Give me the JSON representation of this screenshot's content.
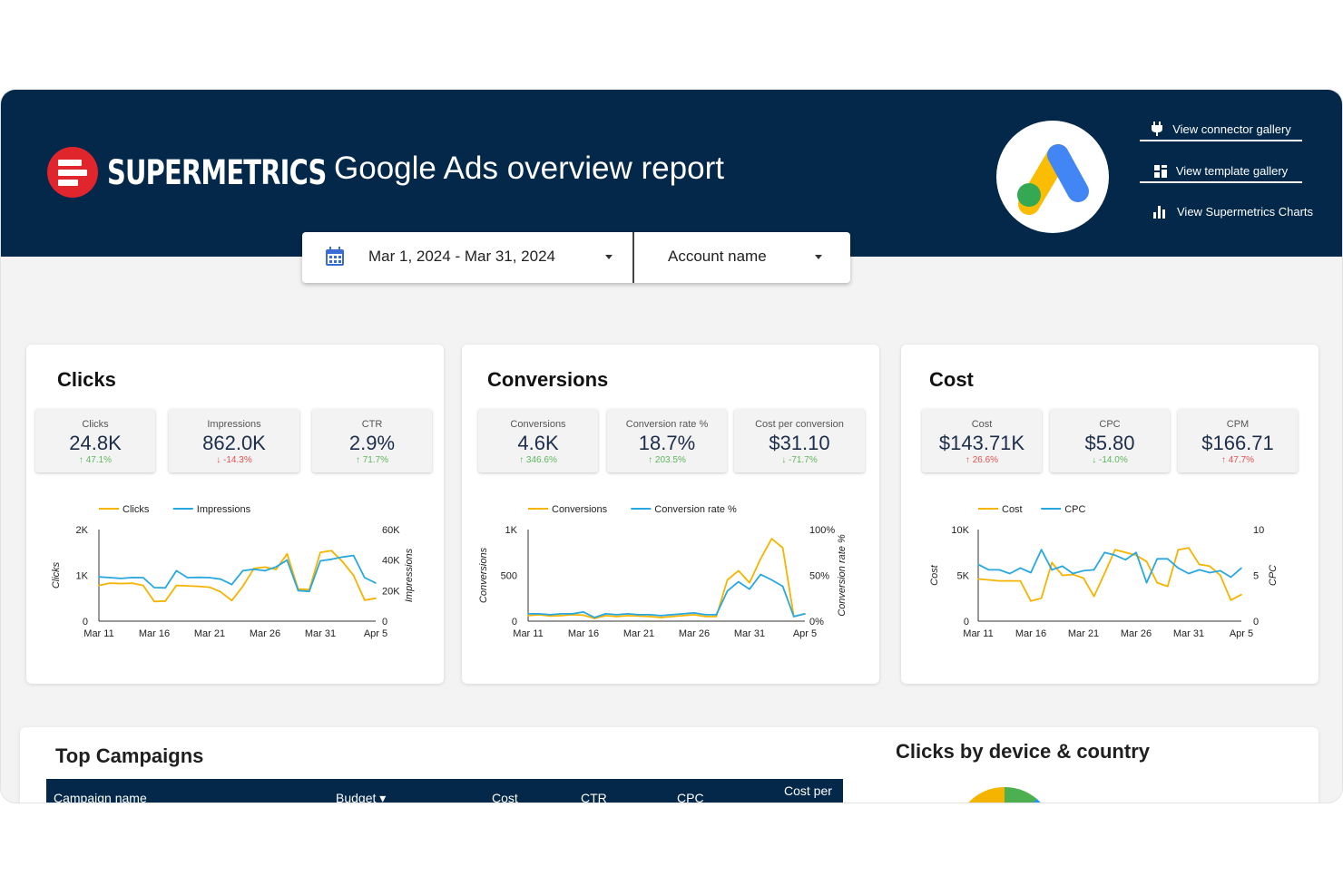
{
  "header": {
    "brand": "SUPERMETRICS",
    "title": "Google Ads overview report",
    "links": [
      {
        "label": "View connector gallery",
        "icon": "plug-icon"
      },
      {
        "label": "View template gallery",
        "icon": "grid-icon"
      },
      {
        "label": "View Supermetrics Charts",
        "icon": "bar-chart-icon"
      }
    ],
    "colors": {
      "header_bg": "#03284a",
      "brand_red": "#e1252c"
    }
  },
  "filters": {
    "date_range": "Mar 1, 2024 - Mar 31, 2024",
    "account": "Account name"
  },
  "cards": {
    "clicks": {
      "title": "Clicks",
      "kpis": [
        {
          "label": "Clicks",
          "value": "24.8K",
          "delta": "↑ 47.1%",
          "direction": "up"
        },
        {
          "label": "Impressions",
          "value": "862.0K",
          "delta": "↓ -14.3%",
          "direction": "down"
        },
        {
          "label": "CTR",
          "value": "2.9%",
          "delta": "↑ 71.7%",
          "direction": "up"
        }
      ]
    },
    "conversions": {
      "title": "Conversions",
      "kpis": [
        {
          "label": "Conversions",
          "value": "4.6K",
          "delta": "↑ 346.6%",
          "direction": "up"
        },
        {
          "label": "Conversion rate %",
          "value": "18.7%",
          "delta": "↑ 203.5%",
          "direction": "up"
        },
        {
          "label": "Cost per conversion",
          "value": "$31.10",
          "delta": "↓ -71.7%",
          "direction": "up"
        }
      ]
    },
    "cost": {
      "title": "Cost",
      "kpis": [
        {
          "label": "Cost",
          "value": "$143.71K",
          "delta": "↑ 26.6%",
          "direction": "down"
        },
        {
          "label": "CPC",
          "value": "$5.80",
          "delta": "↓ -14.0%",
          "direction": "up"
        },
        {
          "label": "CPM",
          "value": "$166.71",
          "delta": "↑ 47.7%",
          "direction": "down"
        }
      ]
    }
  },
  "chart_data": [
    {
      "type": "line",
      "x_tick_labels": [
        "Mar 11",
        "Mar 16",
        "Mar 21",
        "Mar 26",
        "Mar 31",
        "Apr 5"
      ],
      "left_axis": {
        "label": "Clicks",
        "ticks": [
          "0",
          "1K",
          "2K"
        ],
        "ylim": [
          0,
          2000
        ]
      },
      "right_axis": {
        "label": "Impressions",
        "ticks": [
          "0",
          "20K",
          "40K",
          "60K"
        ],
        "ylim": [
          0,
          60000
        ]
      },
      "series": [
        {
          "name": "Clicks",
          "axis": "left",
          "color": "#f4b400",
          "values": [
            780,
            830,
            820,
            830,
            780,
            430,
            440,
            780,
            770,
            760,
            740,
            640,
            450,
            760,
            1150,
            1180,
            1130,
            1470,
            700,
            690,
            1500,
            1540,
            1300,
            1000,
            460,
            500
          ]
        },
        {
          "name": "Impressions",
          "axis": "right",
          "color": "#29a8df",
          "values": [
            29000,
            28500,
            28000,
            28600,
            28500,
            22000,
            21800,
            33000,
            28500,
            28700,
            28500,
            27500,
            24000,
            33000,
            34000,
            33000,
            35500,
            40000,
            20000,
            19500,
            39500,
            40500,
            42000,
            43000,
            28500,
            25000
          ]
        }
      ]
    },
    {
      "type": "line",
      "x_tick_labels": [
        "Mar 11",
        "Mar 16",
        "Mar 21",
        "Mar 26",
        "Mar 31",
        "Apr 5"
      ],
      "left_axis": {
        "label": "Conversions",
        "ticks": [
          "0",
          "500",
          "1K"
        ],
        "ylim": [
          0,
          1000
        ]
      },
      "right_axis": {
        "label": "Conversion rate %",
        "ticks": [
          "0%",
          "50%",
          "100%"
        ],
        "ylim": [
          0,
          100
        ]
      },
      "series": [
        {
          "name": "Conversions",
          "axis": "left",
          "color": "#f4b400",
          "values": [
            60,
            70,
            55,
            60,
            70,
            65,
            30,
            60,
            50,
            60,
            55,
            50,
            40,
            50,
            60,
            70,
            50,
            50,
            450,
            550,
            420,
            680,
            900,
            800,
            50,
            80
          ]
        },
        {
          "name": "Conversion rate %",
          "axis": "right",
          "color": "#29a8df",
          "values": [
            8,
            8,
            7,
            8,
            8,
            10,
            4,
            8,
            7,
            8,
            7,
            7,
            6,
            7,
            8,
            9,
            7,
            7,
            33,
            43,
            35,
            51,
            45,
            38,
            5,
            8
          ]
        }
      ]
    },
    {
      "type": "line",
      "x_tick_labels": [
        "Mar 11",
        "Mar 16",
        "Mar 21",
        "Mar 26",
        "Mar 31",
        "Apr 5"
      ],
      "left_axis": {
        "label": "Cost",
        "ticks": [
          "0",
          "5K",
          "10K"
        ],
        "ylim": [
          0,
          10000
        ]
      },
      "right_axis": {
        "label": "CPC",
        "ticks": [
          "0",
          "5",
          "10"
        ],
        "ylim": [
          0,
          10
        ]
      },
      "series": [
        {
          "name": "Cost",
          "axis": "left",
          "color": "#f4b400",
          "values": [
            4600,
            4500,
            4400,
            4400,
            4400,
            2200,
            2500,
            6400,
            5000,
            5100,
            4700,
            2700,
            5200,
            7800,
            7500,
            7200,
            6500,
            4200,
            3800,
            7800,
            8000,
            6200,
            6000,
            5000,
            2300,
            2900
          ]
        },
        {
          "name": "CPC",
          "axis": "right",
          "color": "#29a8df",
          "values": [
            6.2,
            5.6,
            5.6,
            5.2,
            5.8,
            5.3,
            7.8,
            5.6,
            6.0,
            5.2,
            5.5,
            5.6,
            7.5,
            7.2,
            6.7,
            7.5,
            4.2,
            6.8,
            6.8,
            5.8,
            5.2,
            5.6,
            5.3,
            5.5,
            4.8,
            5.8
          ]
        }
      ]
    }
  ],
  "bottom": {
    "top_campaigns_title": "Top Campaigns",
    "clicks_device_title": "Clicks by device & country",
    "table_headers": [
      "Campaign name",
      "Budget",
      "Cost",
      "CTR",
      "CPC",
      "Cost per"
    ]
  }
}
